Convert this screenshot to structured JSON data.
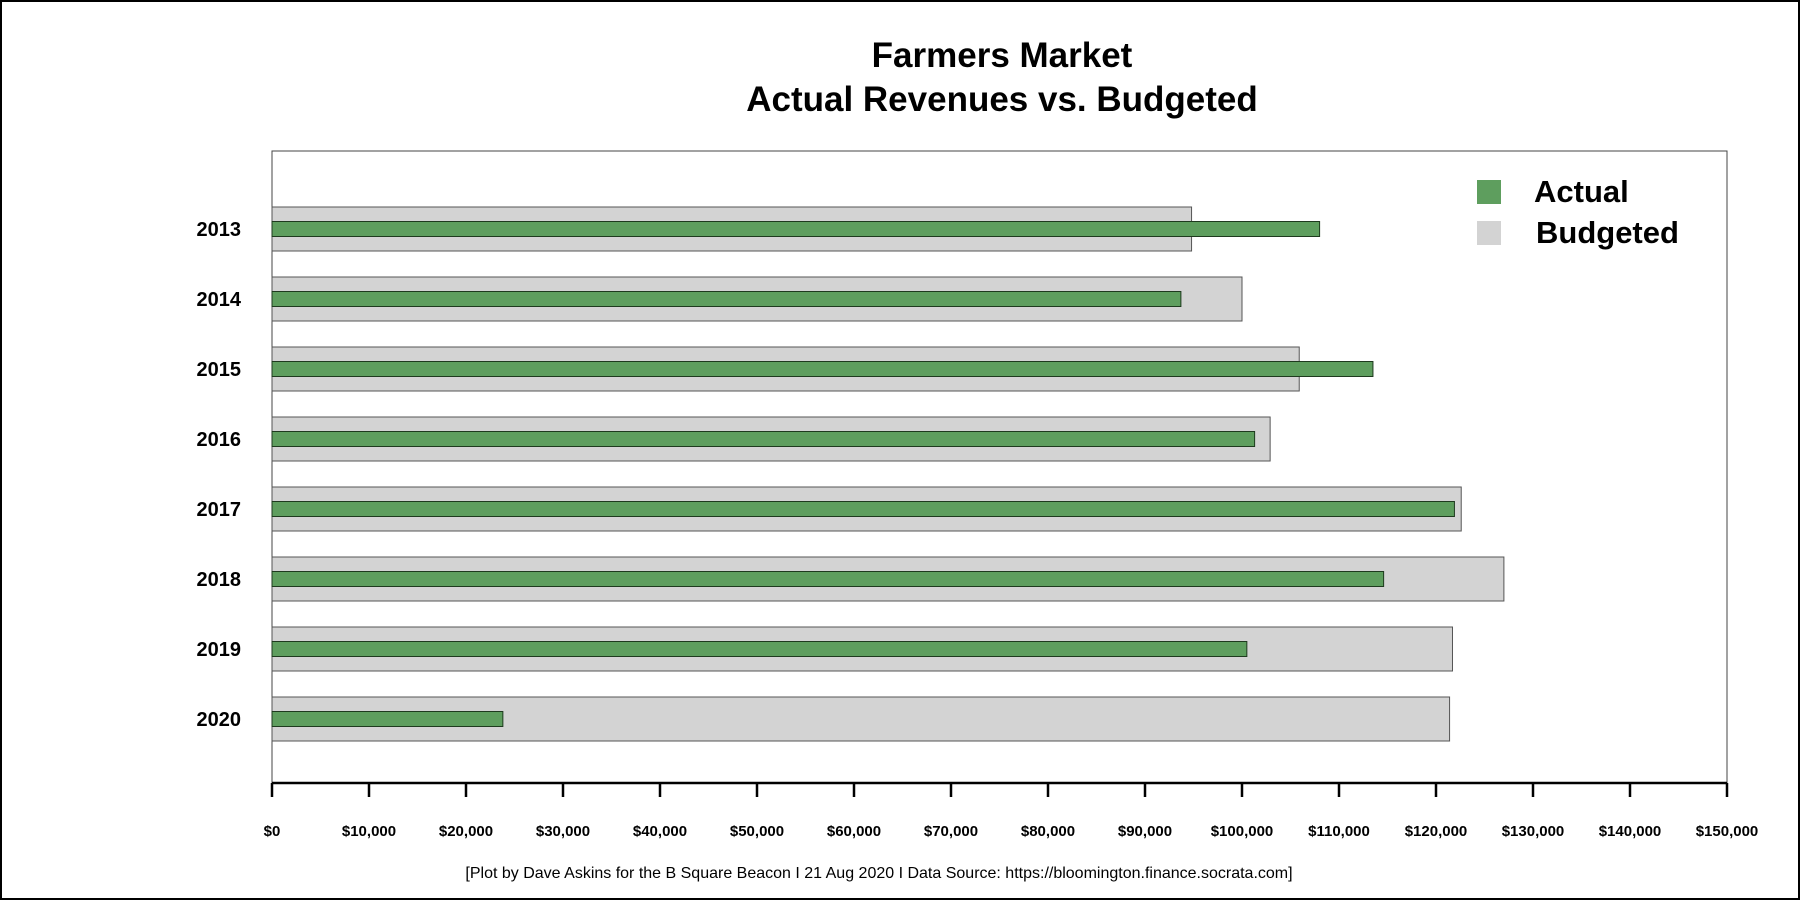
{
  "chart_data": {
    "type": "bar",
    "orientation": "horizontal",
    "title": [
      "Farmers Market",
      "Actual Revenues vs. Budgeted"
    ],
    "xlabel": "",
    "ylabel": "",
    "categories": [
      "2013",
      "2014",
      "2015",
      "2016",
      "2017",
      "2018",
      "2019",
      "2020"
    ],
    "series": [
      {
        "name": "Budgeted",
        "color": "#d3d3d3",
        "values": [
          94800,
          100000,
          105900,
          102900,
          122600,
          127000,
          121700,
          121400
        ]
      },
      {
        "name": "Actual",
        "color": "#5e9e5e",
        "values": [
          108000,
          93700,
          113500,
          101300,
          121900,
          114600,
          100500,
          23800
        ]
      }
    ],
    "xlim": [
      0,
      150000
    ],
    "xticks": [
      0,
      10000,
      20000,
      30000,
      40000,
      50000,
      60000,
      70000,
      80000,
      90000,
      100000,
      110000,
      120000,
      130000,
      140000,
      150000
    ],
    "xtick_labels": [
      "$0",
      "$10,000",
      "$20,000",
      "$30,000",
      "$40,000",
      "$50,000",
      "$60,000",
      "$70,000",
      "$80,000",
      "$90,000",
      "$100,000",
      "$110,000",
      "$120,000",
      "$130,000",
      "$140,000",
      "$150,000"
    ],
    "grid": false,
    "legend_position": "top-right",
    "legend": [
      {
        "label": "Actual",
        "color": "#5e9e5e"
      },
      {
        "label": "Budgeted",
        "color": "#d3d3d3"
      }
    ],
    "caption": "[Plot by Dave Askins for the B Square Beacon I 21 Aug 2020 I Data Source: https://bloomington.finance.socrata.com]"
  }
}
